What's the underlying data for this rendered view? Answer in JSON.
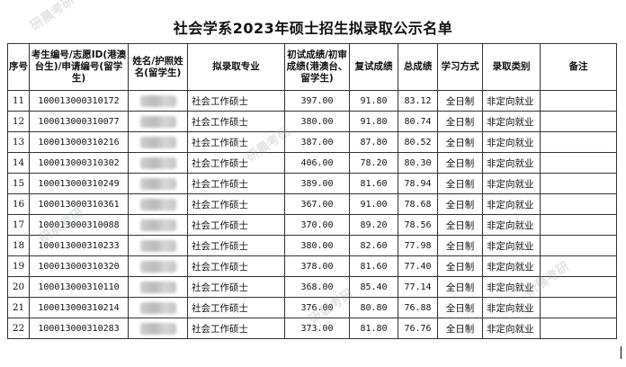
{
  "title": "社会学系2023年硕士招生拟录取公示名单",
  "watermark": "研晨考研",
  "headers": {
    "seq": "序号",
    "exam_id": "考生编号/志愿ID(港澳台生)/申请编号(留学生)",
    "name": "姓名/护照姓名(留学生)",
    "major": "拟录取专业",
    "prelim": "初试成绩/初审成绩(港澳台、留学生)",
    "retest": "复试成绩",
    "total": "总成绩",
    "mode": "学习方式",
    "category": "录取类别",
    "remark": "备注"
  },
  "rows": [
    {
      "seq": "11",
      "id": "100013000310172",
      "major": "社会工作硕士",
      "prelim": "397.00",
      "retest": "91.80",
      "total": "83.12",
      "mode": "全日制",
      "category": "非定向就业",
      "remark": ""
    },
    {
      "seq": "12",
      "id": "100013000310077",
      "major": "社会工作硕士",
      "prelim": "380.00",
      "retest": "91.80",
      "total": "80.74",
      "mode": "全日制",
      "category": "非定向就业",
      "remark": ""
    },
    {
      "seq": "13",
      "id": "100013000310216",
      "major": "社会工作硕士",
      "prelim": "387.00",
      "retest": "87.80",
      "total": "80.52",
      "mode": "全日制",
      "category": "非定向就业",
      "remark": ""
    },
    {
      "seq": "14",
      "id": "100013000310302",
      "major": "社会工作硕士",
      "prelim": "406.00",
      "retest": "78.20",
      "total": "80.30",
      "mode": "全日制",
      "category": "非定向就业",
      "remark": ""
    },
    {
      "seq": "15",
      "id": "100013000310249",
      "major": "社会工作硕士",
      "prelim": "389.00",
      "retest": "81.60",
      "total": "78.94",
      "mode": "全日制",
      "category": "非定向就业",
      "remark": ""
    },
    {
      "seq": "16",
      "id": "100013000310361",
      "major": "社会工作硕士",
      "prelim": "367.00",
      "retest": "91.00",
      "total": "78.68",
      "mode": "全日制",
      "category": "非定向就业",
      "remark": ""
    },
    {
      "seq": "17",
      "id": "100013000310088",
      "major": "社会工作硕士",
      "prelim": "370.00",
      "retest": "89.20",
      "total": "78.56",
      "mode": "全日制",
      "category": "非定向就业",
      "remark": ""
    },
    {
      "seq": "18",
      "id": "100013000310233",
      "major": "社会工作硕士",
      "prelim": "380.00",
      "retest": "82.60",
      "total": "77.98",
      "mode": "全日制",
      "category": "非定向就业",
      "remark": ""
    },
    {
      "seq": "19",
      "id": "100013000310320",
      "major": "社会工作硕士",
      "prelim": "378.00",
      "retest": "81.60",
      "total": "77.40",
      "mode": "全日制",
      "category": "非定向就业",
      "remark": ""
    },
    {
      "seq": "20",
      "id": "100013000310110",
      "major": "社会工作硕士",
      "prelim": "368.00",
      "retest": "85.40",
      "total": "77.14",
      "mode": "全日制",
      "category": "非定向就业",
      "remark": ""
    },
    {
      "seq": "21",
      "id": "100013000310214",
      "major": "社会工作硕士",
      "prelim": "376.00",
      "retest": "80.80",
      "total": "76.88",
      "mode": "全日制",
      "category": "非定向就业",
      "remark": ""
    },
    {
      "seq": "22",
      "id": "100013000310283",
      "major": "社会工作硕士",
      "prelim": "373.00",
      "retest": "81.80",
      "total": "76.76",
      "mode": "全日制",
      "category": "非定向就业",
      "remark": ""
    }
  ]
}
